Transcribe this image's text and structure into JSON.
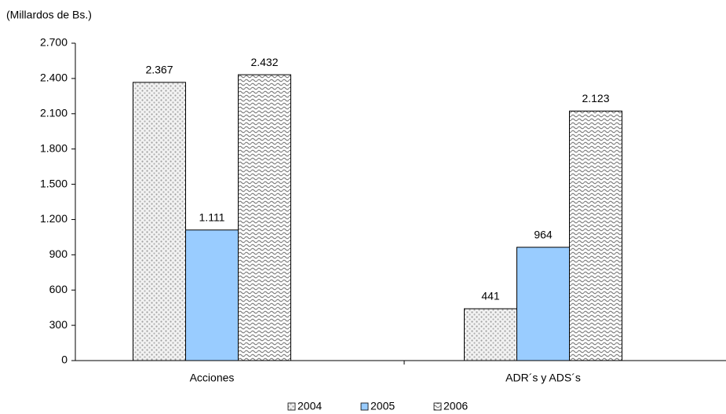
{
  "chart_data": {
    "type": "bar",
    "title": "(Millardos de Bs.)",
    "categories": [
      "Acciones",
      "ADR´s y ADS´s"
    ],
    "series": [
      {
        "name": "2004",
        "color": "#c0c0c0",
        "pattern": "dots",
        "values": [
          2367,
          441
        ],
        "value_labels": [
          "2.367",
          "441"
        ]
      },
      {
        "name": "2005",
        "color": "#99ccff",
        "pattern": "solid",
        "values": [
          1111,
          964
        ],
        "value_labels": [
          "1.111",
          "964"
        ]
      },
      {
        "name": "2006",
        "color": "#808080",
        "pattern": "waves",
        "values": [
          2432,
          2123
        ],
        "value_labels": [
          "2.432",
          "2.123"
        ]
      }
    ],
    "ylim": [
      0,
      2700
    ],
    "yticks": [
      0,
      300,
      600,
      900,
      {
        "value": 1200,
        "label": "1.200"
      },
      {
        "value": 1500,
        "label": "1.500"
      },
      {
        "value": 1800,
        "label": "1.800"
      },
      {
        "value": 2100,
        "label": "2.100"
      },
      {
        "value": 2400,
        "label": "2.400"
      },
      {
        "value": 2700,
        "label": "2.700"
      }
    ],
    "grid": false,
    "legend": "bottom"
  }
}
